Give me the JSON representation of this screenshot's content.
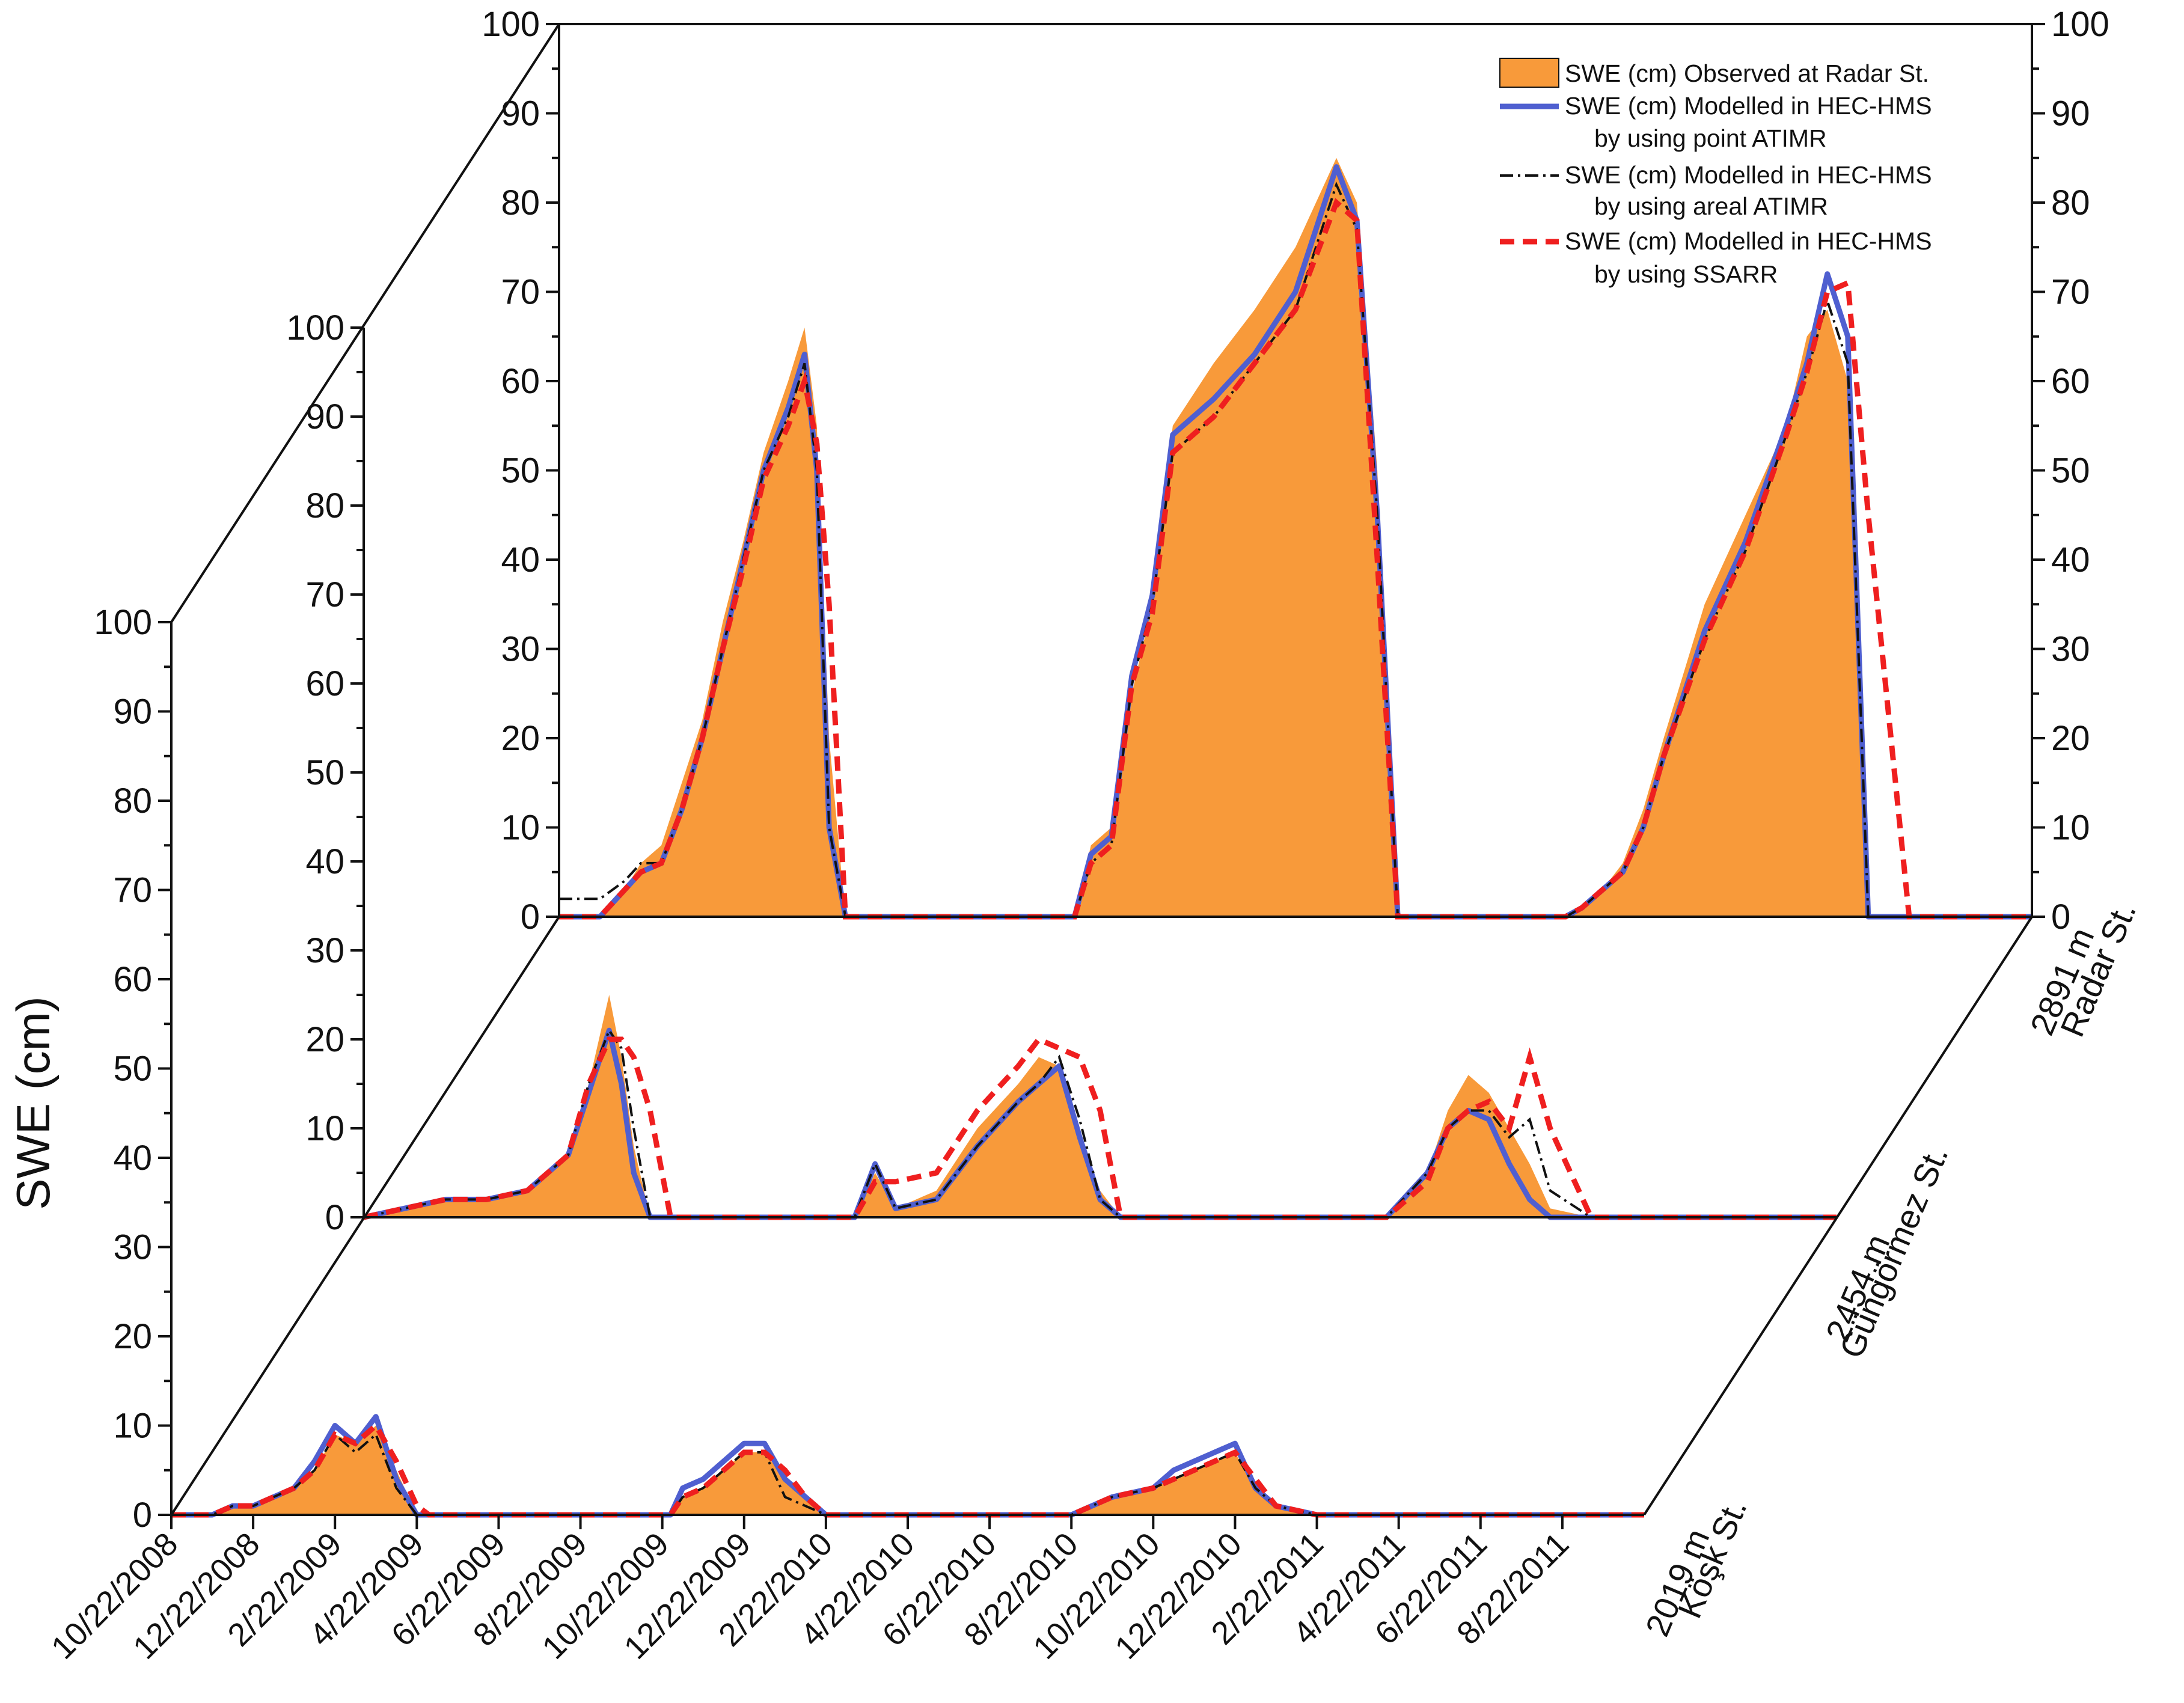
{
  "chart_data": {
    "type": "area",
    "ylabel": "SWE (cm)",
    "x_tick_labels": [
      "10/22/2008",
      "12/22/2008",
      "2/22/2009",
      "4/22/2009",
      "6/22/2009",
      "8/22/2009",
      "10/22/2009",
      "12/22/2009",
      "2/22/2010",
      "4/22/2010",
      "6/22/2010",
      "8/22/2010",
      "10/22/2010",
      "12/22/2010",
      "2/22/2011",
      "4/22/2011",
      "6/22/2011",
      "8/22/2011"
    ],
    "x_range_months": [
      0,
      36
    ],
    "legend": {
      "observed": "SWE (cm) Observed at Radar St.",
      "point_line1": "SWE (cm) Modelled in HEC-HMS",
      "point_line2": "by using point ATIMR",
      "areal_line1": "SWE (cm) Modelled in HEC-HMS",
      "areal_line2": "by using areal ATIMR",
      "ssarr_line1": "SWE (cm) Modelled in HEC-HMS",
      "ssarr_line2": "by using SSARR"
    },
    "colors": {
      "observed": "#F89A3A",
      "point": "#4F5FD0",
      "areal": "#111111",
      "ssarr": "#EF1F1F"
    },
    "panels": [
      {
        "id": "radar",
        "station_elev": "2891 m",
        "station_name": "Radar St.",
        "ylim": [
          0,
          100
        ],
        "yticks": [
          0,
          10,
          20,
          30,
          40,
          50,
          60,
          70,
          80,
          90,
          100
        ],
        "right_axis": true,
        "x_months": [
          0,
          1,
          1.6,
          2,
          2.5,
          3,
          3.5,
          4,
          4.5,
          5,
          5.6,
          6,
          6.3,
          6.6,
          7,
          7.3,
          7.8,
          8,
          10,
          12,
          12.6,
          13,
          13.5,
          14,
          14.5,
          15,
          16,
          17,
          18,
          19,
          19.5,
          20,
          20.5,
          21,
          21.6,
          22,
          24,
          24.6,
          25,
          25.5,
          26,
          26.5,
          27,
          28,
          29,
          30,
          30.5,
          31,
          31.5,
          32,
          33,
          34,
          36
        ],
        "observed": [
          0,
          0,
          3,
          6,
          8,
          15,
          22,
          33,
          42,
          52,
          60,
          66,
          55,
          20,
          0,
          0,
          0,
          0,
          0,
          0,
          0,
          8,
          10,
          25,
          35,
          55,
          62,
          68,
          75,
          85,
          80,
          50,
          0,
          0,
          0,
          0,
          0,
          0,
          1,
          3,
          6,
          12,
          20,
          35,
          45,
          55,
          65,
          68,
          60,
          0,
          0,
          0,
          0
        ],
        "point_atimr": [
          0,
          0,
          3,
          5,
          6,
          12,
          20,
          30,
          40,
          50,
          57,
          63,
          50,
          10,
          0,
          0,
          0,
          0,
          0,
          0,
          0,
          7,
          9,
          27,
          36,
          54,
          58,
          63,
          70,
          84,
          78,
          45,
          0,
          0,
          0,
          0,
          0,
          0,
          1,
          3,
          5,
          10,
          18,
          32,
          42,
          55,
          62,
          72,
          65,
          0,
          0,
          0,
          0
        ],
        "areal_atimr": [
          2,
          2,
          4,
          6,
          6,
          12,
          20,
          30,
          40,
          50,
          56,
          62,
          50,
          10,
          0,
          0,
          0,
          0,
          0,
          0,
          0,
          6,
          8,
          26,
          35,
          52,
          56,
          62,
          68,
          82,
          77,
          45,
          0,
          0,
          0,
          0,
          0,
          0,
          1,
          3,
          5,
          10,
          18,
          31,
          41,
          54,
          61,
          69,
          62,
          0,
          0,
          0,
          0
        ],
        "ssarr": [
          0,
          0,
          3,
          5,
          6,
          12,
          20,
          30,
          39,
          49,
          55,
          60,
          53,
          35,
          0,
          0,
          0,
          0,
          0,
          0,
          0,
          6,
          8,
          26,
          34,
          52,
          56,
          62,
          68,
          80,
          78,
          40,
          0,
          0,
          0,
          0,
          0,
          0,
          1,
          3,
          5,
          10,
          18,
          31,
          41,
          54,
          61,
          70,
          71,
          45,
          0,
          0,
          0
        ]
      },
      {
        "id": "gungormez",
        "station_elev": "2454 m",
        "station_name": "Güngörmez St.",
        "ylim": [
          0,
          100
        ],
        "yticks": [
          0,
          10,
          20,
          30,
          40,
          50,
          60,
          70,
          80,
          90,
          100
        ],
        "x_months": [
          0,
          1,
          2,
          3,
          4,
          5,
          5.5,
          6,
          6.3,
          6.6,
          7,
          7.5,
          8,
          9,
          10,
          12,
          12.5,
          13,
          14,
          15,
          16,
          16.5,
          17,
          17.5,
          18,
          18.5,
          19,
          19.5,
          20,
          21,
          22,
          24,
          25,
          26,
          26.5,
          27,
          27.5,
          28,
          28.5,
          29,
          30,
          32,
          34,
          36
        ],
        "observed": [
          0,
          1,
          2,
          2,
          3,
          7,
          15,
          25,
          18,
          8,
          0,
          0,
          0,
          0,
          0,
          0,
          5,
          1,
          3,
          10,
          15,
          18,
          17,
          9,
          3,
          0,
          0,
          0,
          0,
          0,
          0,
          0,
          0,
          5,
          12,
          16,
          14,
          10,
          6,
          1,
          0,
          0,
          0,
          0
        ],
        "point_atimr": [
          0,
          1,
          2,
          2,
          3,
          7,
          14,
          21,
          15,
          5,
          0,
          0,
          0,
          0,
          0,
          0,
          6,
          1,
          2,
          8,
          13,
          15,
          17,
          9,
          2,
          0,
          0,
          0,
          0,
          0,
          0,
          0,
          0,
          5,
          10,
          12,
          11,
          6,
          2,
          0,
          0,
          0,
          0,
          0
        ],
        "areal_atimr": [
          0,
          1,
          2,
          2,
          3,
          7,
          15,
          21,
          19,
          10,
          0,
          0,
          0,
          0,
          0,
          0,
          6,
          1,
          2,
          8,
          13,
          15,
          18,
          11,
          2,
          0,
          0,
          0,
          0,
          0,
          0,
          0,
          0,
          5,
          10,
          12,
          12,
          9,
          11,
          3,
          0,
          0,
          0,
          0
        ],
        "ssarr": [
          0,
          1,
          2,
          2,
          3,
          7,
          15,
          20,
          20,
          18,
          12,
          0,
          0,
          0,
          0,
          0,
          4,
          4,
          5,
          12,
          17,
          20,
          19,
          18,
          12,
          0,
          0,
          0,
          0,
          0,
          0,
          0,
          0,
          4,
          10,
          12,
          13,
          10,
          18,
          10,
          0,
          0,
          0,
          0
        ]
      },
      {
        "id": "kosk",
        "station_elev": "2019 m",
        "station_name": "Köşk St.",
        "ylim": [
          0,
          100
        ],
        "yticks": [
          0,
          10,
          20,
          30,
          40,
          50,
          60,
          70,
          80,
          90,
          100
        ],
        "x_months": [
          0,
          1,
          1.5,
          2,
          3,
          3.5,
          4,
          4.5,
          5,
          5.5,
          6,
          6.3,
          7,
          9,
          11,
          12,
          12.2,
          12.5,
          13,
          13.5,
          14,
          14.5,
          15,
          15.5,
          16,
          17,
          20,
          22,
          23,
          24,
          24.5,
          25,
          25.5,
          26,
          26.5,
          27,
          28,
          30,
          32,
          34,
          36
        ],
        "observed": [
          0,
          0,
          1,
          1,
          3,
          5,
          9,
          8,
          10,
          5,
          0,
          0,
          0,
          0,
          0,
          0,
          0,
          2,
          3,
          5,
          7,
          7,
          4,
          2,
          0,
          0,
          0,
          0,
          2,
          3,
          4,
          5,
          6,
          7,
          3,
          1,
          0,
          0,
          0,
          0,
          0
        ],
        "point_atimr": [
          0,
          0,
          1,
          1,
          3,
          6,
          10,
          8,
          11,
          4,
          0,
          0,
          0,
          0,
          0,
          0,
          0,
          3,
          4,
          6,
          8,
          8,
          4,
          2,
          0,
          0,
          0,
          0,
          2,
          3,
          5,
          6,
          7,
          8,
          3,
          1,
          0,
          0,
          0,
          0,
          0
        ],
        "areal_atimr": [
          0,
          0,
          1,
          1,
          3,
          5,
          9,
          7,
          9,
          3,
          0,
          0,
          0,
          0,
          0,
          0,
          0,
          2,
          3,
          5,
          7,
          7,
          2,
          1,
          0,
          0,
          0,
          0,
          2,
          3,
          4,
          5,
          6,
          7,
          3,
          1,
          0,
          0,
          0,
          0,
          0
        ],
        "ssarr": [
          0,
          0,
          1,
          1,
          3,
          5,
          9,
          8,
          10,
          6,
          1,
          0,
          0,
          0,
          0,
          0,
          0,
          2,
          3,
          5,
          7,
          7,
          5,
          2,
          0,
          0,
          0,
          0,
          2,
          3,
          4,
          5,
          6,
          7,
          4,
          1,
          0,
          0,
          0,
          0,
          0
        ]
      }
    ]
  }
}
